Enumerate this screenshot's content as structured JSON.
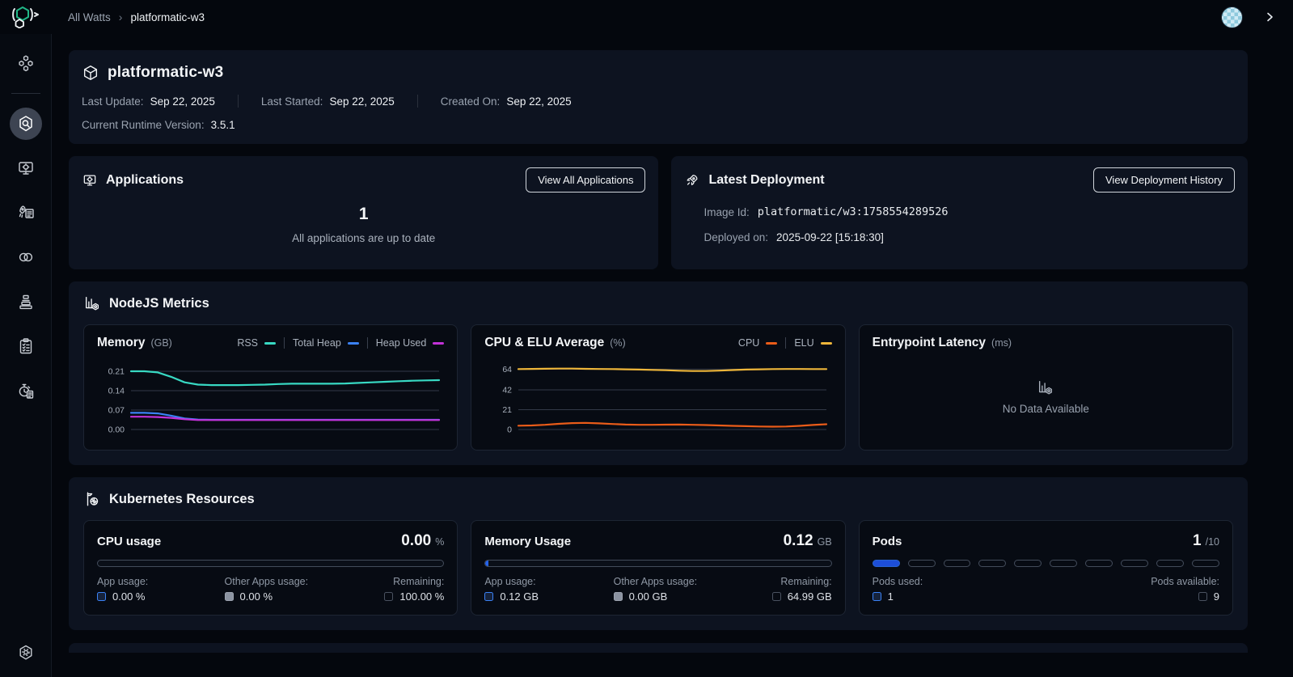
{
  "topbar": {
    "breadcrumb": {
      "root": "All Watts",
      "separator": "›",
      "current": "platformatic-w3"
    }
  },
  "sidebar": {
    "items": [
      {
        "icon": "apps-cluster-icon",
        "active": false
      },
      {
        "icon": "hexagon-search-icon",
        "active": true
      },
      {
        "icon": "monitor-gear-icon",
        "active": false
      },
      {
        "icon": "rocket-list-icon",
        "active": false
      },
      {
        "icon": "rings-icon",
        "active": false
      },
      {
        "icon": "layers-stack-icon",
        "active": false
      },
      {
        "icon": "clipboard-checklist-icon",
        "active": false
      },
      {
        "icon": "stopwatch-doc-icon",
        "active": false
      },
      {
        "icon": "hexagon-gear-icon",
        "active": false
      }
    ]
  },
  "header": {
    "title": "platformatic-w3",
    "meta": [
      {
        "label": "Last Update:",
        "value": "Sep 22, 2025"
      },
      {
        "label": "Last Started:",
        "value": "Sep 22, 2025"
      },
      {
        "label": "Created On:",
        "value": "Sep 22, 2025"
      }
    ],
    "runtime": {
      "label": "Current Runtime Version:",
      "value": "3.5.1"
    }
  },
  "applications": {
    "title": "Applications",
    "button": "View All Applications",
    "count": "1",
    "status": "All applications are up to date"
  },
  "deployment": {
    "title": "Latest Deployment",
    "button": "View Deployment History",
    "image_label": "Image Id:",
    "image_value": "platformatic/w3:1758554289526",
    "deployed_label": "Deployed on:",
    "deployed_value": "2025-09-22 [15:18:30]"
  },
  "nodejs_section": {
    "title": "NodeJS Metrics"
  },
  "kubernetes_section": {
    "title": "Kubernetes Resources"
  },
  "chart_data": [
    {
      "id": "memory",
      "type": "line",
      "title": "Memory",
      "unit": "(GB)",
      "grid": true,
      "legend_position": "top-right",
      "ylim": [
        0,
        0.245
      ],
      "ytick_values": [
        0.21,
        0.14,
        0.07,
        0
      ],
      "ytick_labels": [
        "0.21",
        "0.14",
        "0.07",
        "0.00"
      ],
      "series": [
        {
          "name": "RSS",
          "color": "#38d9c3",
          "values": [
            0.21,
            0.21,
            0.206,
            0.19,
            0.17,
            0.162,
            0.16,
            0.16,
            0.16,
            0.161,
            0.162,
            0.164,
            0.165,
            0.165,
            0.165,
            0.165,
            0.166,
            0.168,
            0.17,
            0.172,
            0.174,
            0.176,
            0.177,
            0.178
          ]
        },
        {
          "name": "Total Heap",
          "color": "#3b82f6",
          "values": [
            0.06,
            0.06,
            0.058,
            0.05,
            0.04,
            0.036,
            0.035,
            0.035,
            0.035,
            0.035,
            0.035,
            0.035,
            0.035,
            0.035,
            0.035,
            0.035,
            0.035,
            0.035,
            0.035,
            0.035,
            0.035,
            0.035,
            0.035,
            0.035
          ]
        },
        {
          "name": "Heap Used",
          "color": "#c332d8",
          "values": [
            0.046,
            0.046,
            0.045,
            0.042,
            0.037,
            0.034,
            0.034,
            0.034,
            0.034,
            0.034,
            0.034,
            0.034,
            0.034,
            0.034,
            0.034,
            0.034,
            0.034,
            0.034,
            0.034,
            0.034,
            0.034,
            0.034,
            0.034,
            0.034
          ]
        }
      ]
    },
    {
      "id": "cpu-elu",
      "type": "line",
      "title": "CPU & ELU Average",
      "unit": "(%)",
      "grid": true,
      "legend_position": "top-right",
      "ylim": [
        0,
        72
      ],
      "ytick_values": [
        64,
        42,
        21,
        0
      ],
      "ytick_labels": [
        "64",
        "42",
        "21",
        "0"
      ],
      "series": [
        {
          "name": "CPU",
          "color": "#ea5c19",
          "values": [
            4.0,
            4.3,
            5.0,
            6.0,
            6.8,
            7.0,
            6.5,
            5.8,
            5.2,
            5.0,
            5.0,
            5.1,
            5.2,
            5.0,
            4.7,
            4.3,
            3.9,
            3.5,
            3.2,
            3.0,
            3.2,
            3.9,
            4.8,
            5.6
          ]
        },
        {
          "name": "ELU",
          "color": "#eeb63a",
          "values": [
            64,
            64.2,
            64.4,
            64.5,
            64.5,
            64.3,
            64.1,
            64,
            63.8,
            63.5,
            63.2,
            62.8,
            62.3,
            62.0,
            62.0,
            62.4,
            63.0,
            63.5,
            63.8,
            64,
            64.1,
            64.1,
            64,
            64
          ]
        }
      ]
    },
    {
      "id": "entrypoint-latency",
      "type": "line",
      "title": "Entrypoint Latency",
      "unit": "(ms)",
      "no_data": true,
      "empty_text": "No Data Available"
    }
  ],
  "resources": {
    "cpu": {
      "title": "CPU usage",
      "value": "0.00",
      "unit": "%",
      "bar_fill_pct": 0,
      "legend": [
        {
          "label": "App usage:",
          "value": "0.00 %"
        },
        {
          "label": "Other Apps usage:",
          "value": "0.00 %"
        },
        {
          "label": "Remaining:",
          "value": "100.00 %"
        }
      ]
    },
    "memory": {
      "title": "Memory Usage",
      "value": "0.12",
      "unit": "GB",
      "bar_fill_pct": 0.6,
      "legend": [
        {
          "label": "App usage:",
          "value": "0.12 GB"
        },
        {
          "label": "Other Apps usage:",
          "value": "0.00 GB"
        },
        {
          "label": "Remaining:",
          "value": "64.99 GB"
        }
      ]
    },
    "pods": {
      "title": "Pods",
      "value": "1",
      "unit": "/10",
      "segments_total": 10,
      "segments_filled": 1,
      "legend": [
        {
          "label": "Pods used:",
          "value": "1"
        },
        {
          "label": "Pods available:",
          "value": "9"
        }
      ]
    }
  },
  "colors": {
    "accent_blue": "#2563eb",
    "panel_bg": "#0d1320",
    "card_bg": "#070b13",
    "logo_green": "#21b787"
  }
}
